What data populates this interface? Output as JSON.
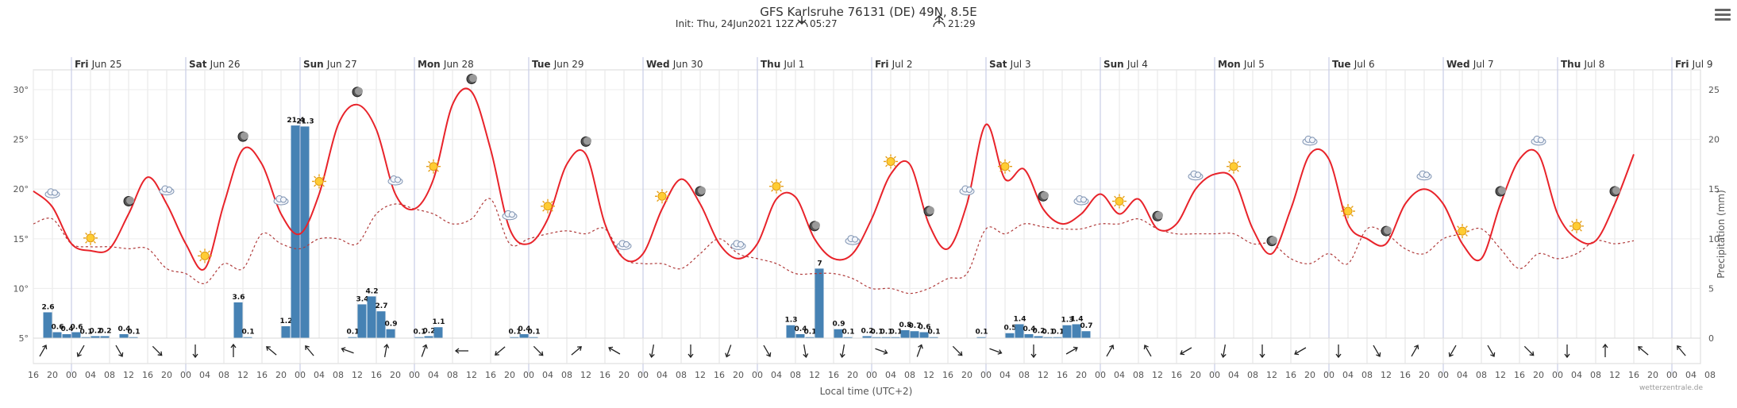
{
  "header": {
    "title": "GFS Karlsruhe 76131 (DE) 49N, 8.5E",
    "init": "Init: Thu, 24Jun2021 12Z",
    "sunrise": "05:27",
    "sunset": "21:29"
  },
  "footer": {
    "xlabel": "Local time (UTC+2)",
    "credit": "wetterzentrale.de"
  },
  "colors": {
    "temp": "#e8232a",
    "dew": "#b03a3a",
    "precip": "#4682b4",
    "grid": "#e6e6e6",
    "day_line": "#c9cde6"
  },
  "chart_data": {
    "type": "line",
    "title": "GFS Karlsruhe 76131 (DE) 49N, 8.5E",
    "ylabel_right": "Precipitation (mm)",
    "xlabel": "Local time (UTC+2)",
    "y_left_ticks": [
      "5°",
      "10°",
      "15°",
      "20°",
      "25°",
      "30°"
    ],
    "y_left_range": [
      5,
      32
    ],
    "y_right_ticks": [
      "0",
      "5",
      "10",
      "15",
      "20",
      "25"
    ],
    "y_right_range": [
      0,
      27
    ],
    "start_time": "Thu Jun 24 16:00",
    "step_hours": 4,
    "day_labels": [
      "Fri Jun 25",
      "Sat Jun 26",
      "Sun Jun 27",
      "Mon Jun 28",
      "Tue Jun 29",
      "Wed Jun 30",
      "Thu Jul 1",
      "Fri Jul 2",
      "Sat Jul 3",
      "Sun Jul 4",
      "Mon Jul 5",
      "Tue Jul 6",
      "Wed Jul 7",
      "Thu Jul 8",
      "Fri Jul 9"
    ],
    "hour_labels": [
      "16",
      "20",
      "00",
      "04",
      "08",
      "12",
      "16",
      "20",
      "00",
      "04",
      "08",
      "12",
      "16",
      "20",
      "00",
      "04",
      "08",
      "12",
      "16",
      "20",
      "00",
      "04",
      "08",
      "12",
      "16",
      "20",
      "00",
      "04",
      "08",
      "12",
      "16",
      "20",
      "00",
      "04",
      "08",
      "12",
      "16",
      "20",
      "00",
      "04",
      "08",
      "12",
      "16",
      "20",
      "00",
      "04",
      "08",
      "12",
      "16",
      "20",
      "00",
      "04",
      "08",
      "12",
      "16",
      "20",
      "00",
      "04",
      "08",
      "12",
      "16",
      "20",
      "00",
      "04",
      "08",
      "12",
      "16",
      "20",
      "00",
      "04",
      "08",
      "12",
      "16",
      "20",
      "00",
      "04",
      "08",
      "12",
      "16",
      "20",
      "00",
      "04",
      "08",
      "12",
      "16",
      "20",
      "00",
      "04",
      "08"
    ],
    "series": [
      {
        "name": "Temperature (°C)",
        "values": [
          19.8,
          18.2,
          14.5,
          13.8,
          14,
          17.5,
          21.2,
          18.5,
          14.5,
          12,
          18.5,
          24,
          22.5,
          17.5,
          15.5,
          19.5,
          26.5,
          28.5,
          26,
          19.5,
          18,
          21,
          28.5,
          29.8,
          24,
          16,
          14.5,
          17,
          22.5,
          23.5,
          16.5,
          13,
          13.5,
          18,
          21,
          18.5,
          14.5,
          13,
          14.5,
          19,
          19.2,
          15,
          13,
          13.5,
          17,
          21.5,
          22.5,
          16.5,
          14,
          18.5,
          26.5,
          21,
          22,
          18,
          16.5,
          17.5,
          19.5,
          17.5,
          19,
          16,
          16.5,
          20,
          21.5,
          21,
          16,
          13.5,
          18,
          23.5,
          23,
          16.5,
          15,
          14.5,
          18.5,
          20,
          18.5,
          14.5,
          13,
          18.5,
          23,
          23.5,
          17.5,
          15,
          14.8,
          18.5,
          23.5
        ]
      },
      {
        "name": "Dew point (°C)",
        "values": [
          16.5,
          17,
          14.5,
          14.2,
          14.2,
          14,
          14,
          12,
          11.5,
          10.5,
          12.5,
          12,
          15.5,
          14.5,
          14,
          15,
          15,
          14.5,
          17.5,
          18.5,
          18,
          17.5,
          16.5,
          17,
          19,
          14.5,
          15,
          15.5,
          15.8,
          15.5,
          16,
          13,
          12.5,
          12.5,
          12,
          13.5,
          15,
          13.5,
          13,
          12.5,
          11.5,
          11.5,
          11.5,
          11,
          10,
          10,
          9.5,
          10,
          11,
          11.5,
          16,
          15.5,
          16.5,
          16.2,
          16,
          16,
          16.5,
          16.5,
          17,
          16,
          15.5,
          15.5,
          15.5,
          15.5,
          14.5,
          14.5,
          13,
          12.5,
          13.5,
          12.5,
          16,
          15.5,
          14,
          13.5,
          15,
          15.5,
          16,
          14,
          12,
          13.5,
          13,
          13.5,
          14.8,
          14.5,
          14.8
        ]
      },
      {
        "name": "Precipitation (mm)",
        "values": [
          0,
          2.6,
          0.6,
          0.4,
          0.6,
          0.1,
          0.2,
          0.2,
          0,
          0.4,
          0.1,
          0,
          0,
          0,
          0,
          0,
          0,
          0,
          0,
          0,
          0,
          3.6,
          0.1,
          0,
          0,
          0,
          1.2,
          21.4,
          21.3,
          0,
          0,
          0,
          0,
          0.1,
          3.4,
          4.2,
          2.7,
          0.9,
          0,
          0,
          0.1,
          0.2,
          1.1,
          0,
          0,
          0,
          0,
          0,
          0,
          0,
          0.1,
          0.4,
          0.1,
          0,
          0,
          0,
          0,
          0,
          0,
          0,
          0,
          0,
          0,
          0,
          0,
          0,
          0,
          0,
          0,
          0,
          0,
          0,
          0,
          0,
          0,
          0,
          0,
          0,
          0,
          1.3,
          0.4,
          0.1,
          7,
          0,
          0.9,
          0.1,
          0,
          0.2,
          0.1,
          0.1,
          0.1,
          0.8,
          0.7,
          0.6,
          0.1,
          0,
          0,
          0,
          0,
          0.1,
          0,
          0,
          0.5,
          1.4,
          0.4,
          0.2,
          0.1,
          0.1,
          1.3,
          1.4,
          0.7,
          0,
          0,
          0,
          0,
          0,
          0,
          0,
          0,
          0,
          0,
          0
        ]
      }
    ]
  }
}
